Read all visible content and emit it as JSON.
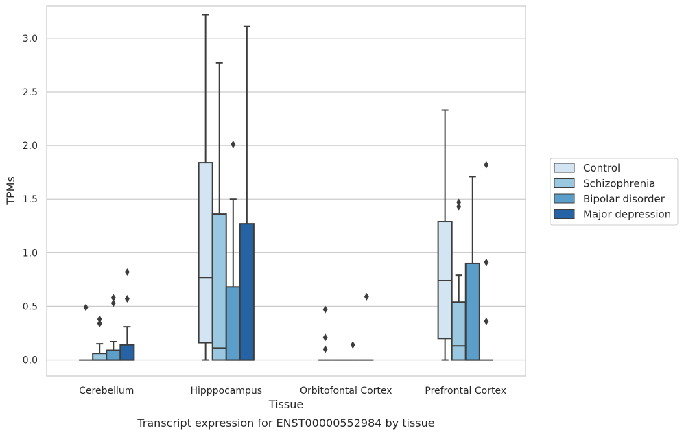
{
  "chart_data": {
    "type": "box",
    "title": "Transcript expression for ENST00000552984 by tissue",
    "xlabel": "Tissue",
    "ylabel": "TPMs",
    "categories": [
      "Cerebellum",
      "Hipppocampus",
      "Orbitofontal Cortex",
      "Prefrontal Cortex"
    ],
    "ylim": [
      -0.15,
      3.3
    ],
    "yticks": [
      0.0,
      0.5,
      1.0,
      1.5,
      2.0,
      2.5,
      3.0
    ],
    "ytick_labels": [
      "0.0",
      "0.5",
      "1.0",
      "1.5",
      "2.0",
      "2.5",
      "3.0"
    ],
    "grid": "horizontal",
    "legend_position": "right",
    "series": [
      {
        "name": "Control",
        "color": "#d3e4f3",
        "boxes": [
          {
            "min": 0.0,
            "q1": 0.0,
            "median": 0.0,
            "q3": 0.0,
            "max": 0.0,
            "outliers": [
              0.49
            ]
          },
          {
            "min": 0.0,
            "q1": 0.16,
            "median": 0.77,
            "q3": 1.84,
            "max": 3.22,
            "outliers": []
          },
          {
            "min": 0.0,
            "q1": 0.0,
            "median": 0.0,
            "q3": 0.0,
            "max": 0.0,
            "outliers": [
              0.47,
              0.21,
              0.1
            ]
          },
          {
            "min": 0.0,
            "q1": 0.2,
            "median": 0.74,
            "q3": 1.29,
            "max": 2.33,
            "outliers": []
          }
        ]
      },
      {
        "name": "Schizophrenia",
        "color": "#9ac8e0",
        "boxes": [
          {
            "min": 0.0,
            "q1": 0.0,
            "median": 0.0,
            "q3": 0.06,
            "max": 0.15,
            "outliers": [
              0.38,
              0.34
            ]
          },
          {
            "min": 0.0,
            "q1": 0.0,
            "median": 0.11,
            "q3": 1.36,
            "max": 2.77,
            "outliers": []
          },
          {
            "min": 0.0,
            "q1": 0.0,
            "median": 0.0,
            "q3": 0.0,
            "max": 0.0,
            "outliers": []
          },
          {
            "min": 0.0,
            "q1": 0.0,
            "median": 0.13,
            "q3": 0.54,
            "max": 0.79,
            "outliers": [
              1.47,
              1.43
            ]
          }
        ]
      },
      {
        "name": "Bipolar disorder",
        "color": "#5a9ec9",
        "boxes": [
          {
            "min": 0.0,
            "q1": 0.0,
            "median": 0.0,
            "q3": 0.09,
            "max": 0.17,
            "outliers": [
              0.58,
              0.53
            ]
          },
          {
            "min": 0.0,
            "q1": 0.0,
            "median": 0.0,
            "q3": 0.68,
            "max": 1.5,
            "outliers": [
              2.01
            ]
          },
          {
            "min": 0.0,
            "q1": 0.0,
            "median": 0.0,
            "q3": 0.0,
            "max": 0.0,
            "outliers": [
              0.14
            ]
          },
          {
            "min": 0.0,
            "q1": 0.0,
            "median": 0.0,
            "q3": 0.9,
            "max": 1.71,
            "outliers": []
          }
        ]
      },
      {
        "name": "Major depression",
        "color": "#2563a4",
        "boxes": [
          {
            "min": 0.0,
            "q1": 0.0,
            "median": 0.0,
            "q3": 0.14,
            "max": 0.31,
            "outliers": [
              0.82,
              0.57
            ]
          },
          {
            "min": 0.0,
            "q1": 0.0,
            "median": 0.0,
            "q3": 1.27,
            "max": 3.11,
            "outliers": []
          },
          {
            "min": 0.0,
            "q1": 0.0,
            "median": 0.0,
            "q3": 0.0,
            "max": 0.0,
            "outliers": [
              0.59
            ]
          },
          {
            "min": 0.0,
            "q1": 0.0,
            "median": 0.0,
            "q3": 0.0,
            "max": 0.0,
            "outliers": [
              1.82,
              0.91,
              0.36
            ]
          }
        ]
      }
    ]
  }
}
